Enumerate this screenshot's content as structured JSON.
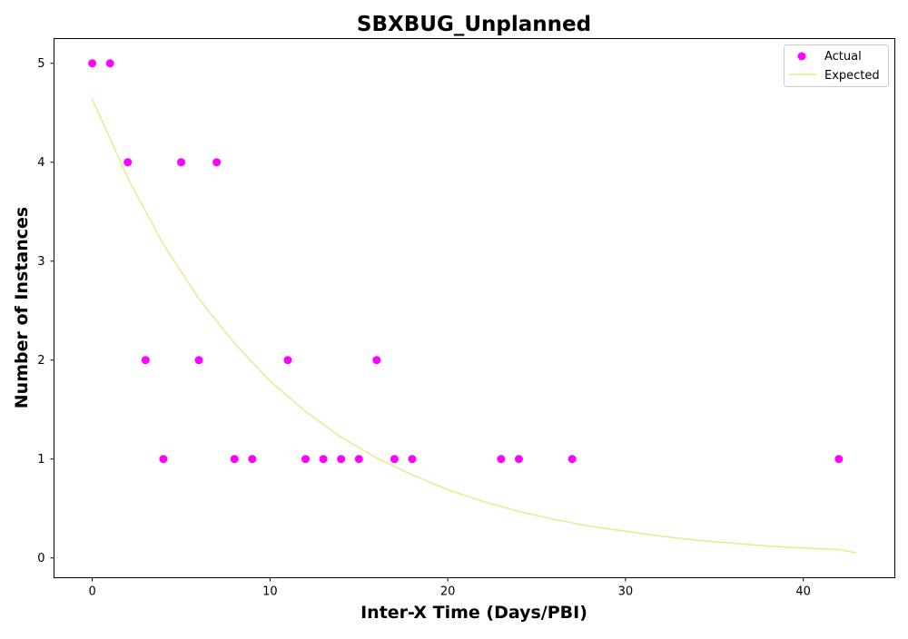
{
  "chart_data": {
    "type": "scatter",
    "title": "SBXBUG_Unplanned",
    "xlabel": "Inter-X Time (Days/PBI)",
    "ylabel": "Number of Instances",
    "xlim": [
      -2.15,
      45.15
    ],
    "ylim": [
      -0.2,
      5.25
    ],
    "xticks": [
      0,
      10,
      20,
      30,
      40
    ],
    "yticks": [
      0,
      1,
      2,
      3,
      4,
      5
    ],
    "grid": false,
    "legend_position": "top-right",
    "series": [
      {
        "name": "Actual",
        "kind": "scatter",
        "color": "#ff00ff",
        "points": [
          {
            "x": 0,
            "y": 5
          },
          {
            "x": 1,
            "y": 5
          },
          {
            "x": 2,
            "y": 4
          },
          {
            "x": 3,
            "y": 2
          },
          {
            "x": 4,
            "y": 1
          },
          {
            "x": 5,
            "y": 4
          },
          {
            "x": 6,
            "y": 2
          },
          {
            "x": 7,
            "y": 4
          },
          {
            "x": 8,
            "y": 1
          },
          {
            "x": 9,
            "y": 1
          },
          {
            "x": 11,
            "y": 2
          },
          {
            "x": 12,
            "y": 1
          },
          {
            "x": 13,
            "y": 1
          },
          {
            "x": 14,
            "y": 1
          },
          {
            "x": 15,
            "y": 1
          },
          {
            "x": 16,
            "y": 2
          },
          {
            "x": 17,
            "y": 1
          },
          {
            "x": 18,
            "y": 1
          },
          {
            "x": 23,
            "y": 1
          },
          {
            "x": 24,
            "y": 1
          },
          {
            "x": 27,
            "y": 1
          },
          {
            "x": 42,
            "y": 1
          }
        ]
      },
      {
        "name": "Expected",
        "kind": "line",
        "color": "#f0e68c",
        "points": [
          {
            "x": 0,
            "y": 4.64
          },
          {
            "x": 2,
            "y": 3.84
          },
          {
            "x": 4,
            "y": 3.17
          },
          {
            "x": 6,
            "y": 2.62
          },
          {
            "x": 8,
            "y": 2.17
          },
          {
            "x": 10,
            "y": 1.79
          },
          {
            "x": 12,
            "y": 1.48
          },
          {
            "x": 14,
            "y": 1.22
          },
          {
            "x": 16,
            "y": 1.01
          },
          {
            "x": 18,
            "y": 0.84
          },
          {
            "x": 20,
            "y": 0.69
          },
          {
            "x": 22,
            "y": 0.57
          },
          {
            "x": 24,
            "y": 0.47
          },
          {
            "x": 26,
            "y": 0.39
          },
          {
            "x": 28,
            "y": 0.32
          },
          {
            "x": 30,
            "y": 0.27
          },
          {
            "x": 32,
            "y": 0.22
          },
          {
            "x": 34,
            "y": 0.18
          },
          {
            "x": 36,
            "y": 0.15
          },
          {
            "x": 38,
            "y": 0.12
          },
          {
            "x": 40,
            "y": 0.1
          },
          {
            "x": 42,
            "y": 0.085
          },
          {
            "x": 43,
            "y": 0.05
          }
        ]
      }
    ]
  }
}
